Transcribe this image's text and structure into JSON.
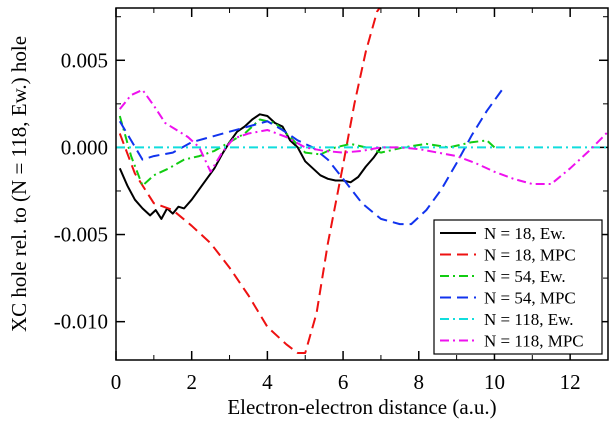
{
  "chart_data": {
    "type": "line",
    "title": "",
    "xlabel": "Electron-electron distance (a.u.)",
    "ylabel": "XC hole rel. to (N = 118, Ew.) hole",
    "xlim": [
      0,
      13
    ],
    "ylim": [
      -0.0122,
      0.008
    ],
    "xticks": [
      0,
      2,
      4,
      6,
      8,
      10,
      12
    ],
    "xtick_labels": [
      "0",
      "2",
      "4",
      "6",
      "8",
      "10",
      "12"
    ],
    "yticks": [
      -0.01,
      -0.005,
      0,
      0.005
    ],
    "ytick_labels": [
      "-0.010",
      "-0.005",
      "0.000",
      "0.005"
    ],
    "grid": false,
    "legend": {
      "position": "bottom-right"
    },
    "series": [
      {
        "name": "N = 18, Ew.",
        "color": "#000000",
        "dash": "solid",
        "x": [
          0.1,
          0.3,
          0.5,
          0.7,
          0.9,
          1.05,
          1.2,
          1.35,
          1.5,
          1.65,
          1.8,
          2.0,
          2.2,
          2.4,
          2.6,
          2.8,
          3.0,
          3.2,
          3.4,
          3.6,
          3.8,
          4.0,
          4.2,
          4.4,
          4.6,
          4.8,
          5.0,
          5.2,
          5.4,
          5.6,
          5.8,
          6.0,
          6.2,
          6.4,
          6.6,
          6.8,
          7.0
        ],
        "y": [
          -0.0012,
          -0.0022,
          -0.003,
          -0.0035,
          -0.0039,
          -0.0036,
          -0.0041,
          -0.0035,
          -0.0038,
          -0.0034,
          -0.0035,
          -0.003,
          -0.0024,
          -0.0018,
          -0.0012,
          -0.0004,
          0.0003,
          0.0009,
          0.0012,
          0.0016,
          0.0019,
          0.0018,
          0.0014,
          0.0012,
          0.0004,
          0.0,
          -0.0008,
          -0.0012,
          -0.0016,
          -0.0018,
          -0.0019,
          -0.0019,
          -0.002,
          -0.0017,
          -0.0011,
          -0.0006,
          0.0
        ]
      },
      {
        "name": "N = 18, MPC",
        "color": "#ee1111",
        "dash": "long-dash",
        "x": [
          0.1,
          0.5,
          1.0,
          1.5,
          2.0,
          2.5,
          3.0,
          3.5,
          4.0,
          4.5,
          4.8,
          5.0,
          5.3,
          5.6,
          6.0,
          6.3,
          6.6,
          6.9,
          7.0
        ],
        "y": [
          0.0008,
          -0.0015,
          -0.0032,
          -0.0036,
          -0.0045,
          -0.0055,
          -0.0069,
          -0.0085,
          -0.0103,
          -0.0113,
          -0.0118,
          -0.0118,
          -0.0095,
          -0.0055,
          -0.001,
          0.0025,
          0.0055,
          0.0078,
          0.0081
        ]
      },
      {
        "name": "N = 54, Ew.",
        "color": "#11cc11",
        "dash": "dash-dot",
        "x": [
          0.1,
          0.4,
          0.7,
          1.0,
          1.4,
          1.8,
          2.2,
          2.6,
          3.0,
          3.4,
          3.8,
          4.2,
          4.6,
          5.0,
          5.4,
          5.8,
          6.2,
          6.6,
          7.0,
          7.6,
          8.2,
          8.8,
          9.4,
          9.8,
          10.0
        ],
        "y": [
          0.0018,
          -0.0005,
          -0.0022,
          -0.0016,
          -0.0012,
          -0.0007,
          -0.0005,
          -0.0002,
          0.0003,
          0.0008,
          0.0016,
          0.0014,
          0.0006,
          -0.0003,
          -0.0004,
          0.0,
          0.0002,
          0.0,
          -0.0003,
          0.0,
          0.0002,
          0.0,
          0.0003,
          0.0004,
          0.0
        ]
      },
      {
        "name": "N = 54, MPC",
        "color": "#1133ee",
        "dash": "long-dash",
        "x": [
          0.1,
          0.4,
          0.7,
          1.0,
          1.5,
          2.0,
          2.5,
          3.0,
          3.5,
          4.0,
          4.4,
          4.8,
          5.2,
          5.6,
          6.0,
          6.5,
          7.0,
          7.5,
          7.8,
          8.2,
          8.6,
          9.0,
          9.4,
          9.8,
          10.2
        ],
        "y": [
          0.0015,
          0.0004,
          -0.0007,
          -0.0005,
          -0.0003,
          0.0003,
          0.0006,
          0.0009,
          0.0012,
          0.0015,
          0.001,
          0.0004,
          0.0,
          -0.0007,
          -0.0018,
          -0.0032,
          -0.0041,
          -0.0044,
          -0.0044,
          -0.0036,
          -0.0024,
          -0.0009,
          0.0007,
          0.0021,
          0.0033
        ]
      },
      {
        "name": "N = 118, Ew.",
        "color": "#11dddd",
        "dash": "dash-dot",
        "x": [
          0,
          13
        ],
        "y": [
          0.0,
          0.0
        ]
      },
      {
        "name": "N = 118, MPC",
        "color": "#ee11ee",
        "dash": "dash-dot",
        "x": [
          0.1,
          0.4,
          0.7,
          1.0,
          1.3,
          1.6,
          1.9,
          2.2,
          2.5,
          2.8,
          3.1,
          3.5,
          4.0,
          4.5,
          5.0,
          5.5,
          6.0,
          6.5,
          7.0,
          7.5,
          8.0,
          8.5,
          9.0,
          9.5,
          10.0,
          10.5,
          11.0,
          11.5,
          12.0,
          12.5,
          13.0
        ],
        "y": [
          0.0022,
          0.003,
          0.0033,
          0.0024,
          0.0014,
          0.001,
          0.0006,
          0.0,
          -0.0014,
          -0.0003,
          0.0005,
          0.0008,
          0.001,
          0.0006,
          0.0,
          -0.0002,
          -0.0003,
          -0.0002,
          0.0,
          0.0,
          -0.0001,
          -0.0003,
          -0.0005,
          -0.0009,
          -0.0014,
          -0.0018,
          -0.0021,
          -0.0021,
          -0.0012,
          -0.0002,
          0.0009
        ]
      }
    ]
  }
}
